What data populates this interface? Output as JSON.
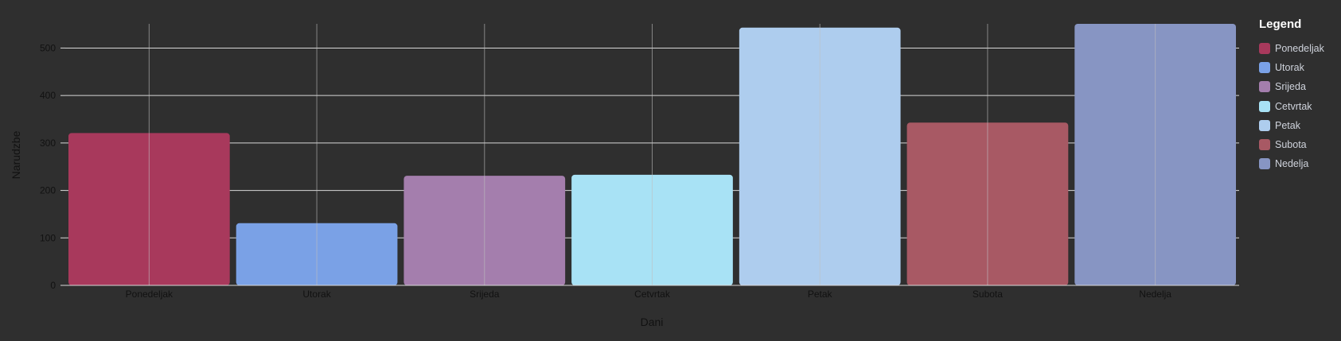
{
  "chart_data": {
    "type": "bar",
    "categories": [
      "Ponedeljak",
      "Utorak",
      "Srijeda",
      "Cetvrtak",
      "Petak",
      "Subota",
      "Nedelja"
    ],
    "values": [
      321,
      131,
      231,
      233,
      543,
      343,
      551
    ],
    "colors": [
      "#a8395c",
      "#7aa1e6",
      "#a47ead",
      "#a8e2f5",
      "#aecdee",
      "#a85964",
      "#8795c3"
    ],
    "xlabel": "Dani",
    "ylabel": "Narudzbe",
    "ylim": [
      0,
      551
    ],
    "yticks": [
      0,
      100,
      200,
      300,
      400,
      500
    ],
    "grid": true,
    "legend_title": "Legend",
    "legend_position": "right"
  }
}
